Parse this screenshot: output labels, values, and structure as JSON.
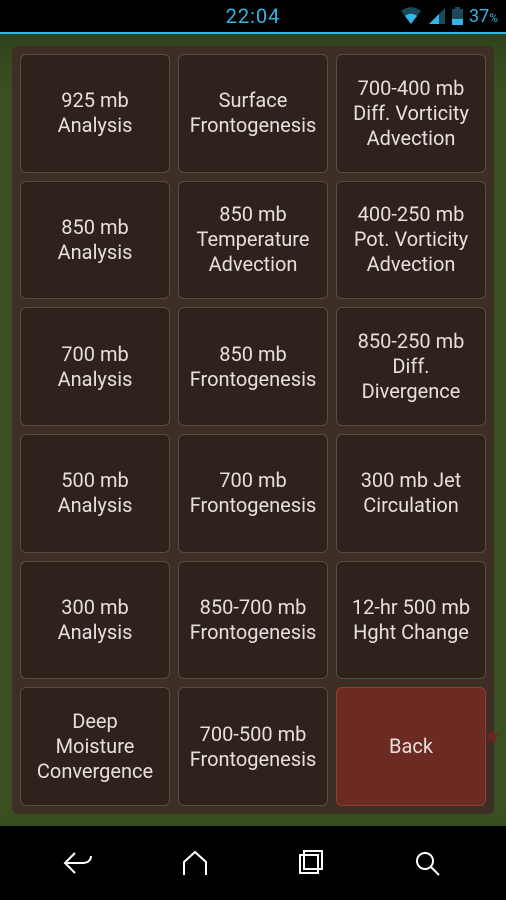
{
  "statusbar": {
    "clock": "22:04",
    "battery_pct": "37",
    "battery_unit": "%",
    "icon_color": "#33b5e5"
  },
  "panel": {
    "background_color": "#3d2e26",
    "cell_background": "#2d221c",
    "cell_border": "#5a4a40",
    "text_color": "#e8e0d8",
    "back_background": "#6b2a22",
    "font_size_pt": 15
  },
  "grid": {
    "rows": 6,
    "cols": 3,
    "cells": [
      {
        "id": "925mb-analysis",
        "label": "925 mb\nAnalysis",
        "is_back": false
      },
      {
        "id": "surface-frontogenesis",
        "label": "Surface\nFrontogenesis",
        "is_back": false
      },
      {
        "id": "700-400-dva",
        "label": "700-400 mb\nDiff. Vorticity\nAdvection",
        "is_back": false
      },
      {
        "id": "850mb-analysis",
        "label": "850 mb\nAnalysis",
        "is_back": false
      },
      {
        "id": "850-temp-adv",
        "label": "850 mb\nTemperature\nAdvection",
        "is_back": false
      },
      {
        "id": "400-250-pva",
        "label": "400-250 mb\nPot. Vorticity\nAdvection",
        "is_back": false
      },
      {
        "id": "700mb-analysis",
        "label": "700 mb\nAnalysis",
        "is_back": false
      },
      {
        "id": "850-frontogenesis",
        "label": "850 mb\nFrontogenesis",
        "is_back": false
      },
      {
        "id": "850-250-ddiv",
        "label": "850-250 mb\nDiff.\nDivergence",
        "is_back": false
      },
      {
        "id": "500mb-analysis",
        "label": "500 mb\nAnalysis",
        "is_back": false
      },
      {
        "id": "700-frontogenesis",
        "label": "700 mb\nFrontogenesis",
        "is_back": false
      },
      {
        "id": "300-jet",
        "label": "300 mb Jet\nCirculation",
        "is_back": false
      },
      {
        "id": "300mb-analysis",
        "label": "300 mb\nAnalysis",
        "is_back": false
      },
      {
        "id": "850-700-frontogenesis",
        "label": "850-700 mb\nFrontogenesis",
        "is_back": false
      },
      {
        "id": "12hr-500-hght",
        "label": "12-hr 500 mb\nHght Change",
        "is_back": false
      },
      {
        "id": "deep-moisture-conv",
        "label": "Deep\nMoisture\nConvergence",
        "is_back": false
      },
      {
        "id": "700-500-frontogenesis",
        "label": "700-500 mb\nFrontogenesis",
        "is_back": false
      },
      {
        "id": "back",
        "label": "Back",
        "is_back": true
      }
    ]
  },
  "navbar": {
    "buttons": [
      "back",
      "home",
      "recent",
      "search"
    ],
    "icon_color": "#ffffff"
  }
}
